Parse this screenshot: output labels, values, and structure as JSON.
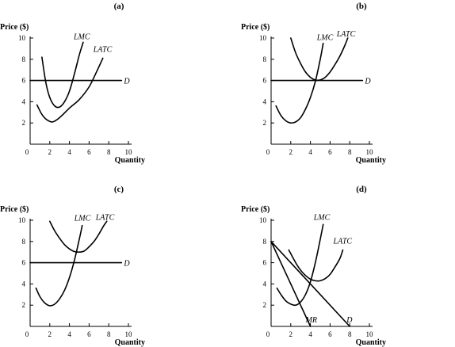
{
  "chart_data": [
    {
      "panel": "(a)",
      "type": "line",
      "ylabel": "Price ($)",
      "xlabel": "Quantity",
      "xlim": [
        0,
        10
      ],
      "ylim": [
        0,
        10
      ],
      "xticks": [
        0,
        2,
        4,
        6,
        8,
        10
      ],
      "yticks": [
        2,
        4,
        6,
        8,
        10
      ],
      "series": [
        {
          "name": "LMC",
          "x": [
            1.2,
            1.6,
            2.0,
            2.5,
            3.0,
            3.5,
            4.0,
            4.5,
            5.0,
            5.4
          ],
          "y": [
            8.2,
            5.8,
            4.4,
            3.6,
            3.5,
            4.0,
            5.0,
            6.6,
            8.4,
            9.6
          ]
        },
        {
          "name": "LATC",
          "x": [
            0.7,
            1.2,
            1.7,
            2.3,
            3.0,
            4.0,
            5.0,
            6.0,
            6.8,
            7.4
          ],
          "y": [
            3.7,
            2.8,
            2.3,
            2.1,
            2.5,
            3.4,
            4.2,
            5.4,
            6.9,
            8.1
          ]
        },
        {
          "name": "D",
          "x": [
            0,
            9.3
          ],
          "y": [
            6,
            6
          ]
        }
      ]
    },
    {
      "panel": "(b)",
      "type": "line",
      "ylabel": "Price ($)",
      "xlabel": "Quantity",
      "xlim": [
        0,
        10
      ],
      "ylim": [
        0,
        10
      ],
      "xticks": [
        0,
        2,
        4,
        6,
        8,
        10
      ],
      "yticks": [
        2,
        4,
        6,
        8,
        10
      ],
      "series": [
        {
          "name": "LMC",
          "x": [
            0.5,
            1.0,
            1.5,
            2.0,
            2.5,
            3.0,
            3.5,
            4.0,
            4.5,
            5.0,
            5.3
          ],
          "y": [
            3.6,
            2.7,
            2.2,
            2.0,
            2.1,
            2.5,
            3.3,
            4.4,
            5.9,
            8.0,
            9.5
          ]
        },
        {
          "name": "LATC",
          "x": [
            2.0,
            2.5,
            3.0,
            3.5,
            4.0,
            4.5,
            5.0,
            5.5,
            6.0,
            6.5,
            7.0,
            7.5,
            7.8
          ],
          "y": [
            10.0,
            8.6,
            7.6,
            6.8,
            6.3,
            6.05,
            6.05,
            6.3,
            6.8,
            7.5,
            8.3,
            9.3,
            10.0
          ]
        },
        {
          "name": "D",
          "x": [
            0,
            9.3
          ],
          "y": [
            6,
            6
          ]
        }
      ]
    },
    {
      "panel": "(c)",
      "type": "line",
      "ylabel": "Price ($)",
      "xlabel": "Quantity",
      "xlim": [
        0,
        10
      ],
      "ylim": [
        0,
        10
      ],
      "xticks": [
        0,
        2,
        4,
        6,
        8,
        10
      ],
      "yticks": [
        2,
        4,
        6,
        8,
        10
      ],
      "series": [
        {
          "name": "LMC",
          "x": [
            0.6,
            1.0,
            1.5,
            2.0,
            2.5,
            3.0,
            3.5,
            4.0,
            4.5,
            5.0,
            5.3
          ],
          "y": [
            3.6,
            2.8,
            2.2,
            1.95,
            2.1,
            2.6,
            3.4,
            4.6,
            6.2,
            8.2,
            9.5
          ]
        },
        {
          "name": "LATC",
          "x": [
            2.0,
            2.5,
            3.0,
            3.5,
            4.0,
            4.5,
            5.0,
            5.5,
            6.0,
            6.5,
            7.0,
            7.5,
            7.8
          ],
          "y": [
            9.9,
            9.0,
            8.3,
            7.7,
            7.3,
            7.05,
            7.0,
            7.1,
            7.5,
            8.0,
            8.7,
            9.5,
            9.9
          ]
        },
        {
          "name": "D",
          "x": [
            0,
            9.3
          ],
          "y": [
            6,
            6
          ]
        }
      ]
    },
    {
      "panel": "(d)",
      "type": "line",
      "ylabel": "Price ($)",
      "xlabel": "Quantity",
      "xlim": [
        0,
        10
      ],
      "ylim": [
        0,
        10
      ],
      "xticks": [
        0,
        2,
        4,
        6,
        8,
        10
      ],
      "yticks": [
        2,
        4,
        6,
        8,
        10
      ],
      "series": [
        {
          "name": "LMC",
          "x": [
            0.6,
            1.0,
            1.5,
            2.0,
            2.5,
            3.0,
            3.5,
            4.0,
            4.5,
            5.0,
            5.3
          ],
          "y": [
            3.6,
            3.0,
            2.4,
            2.1,
            2.0,
            2.3,
            3.0,
            4.2,
            6.0,
            8.2,
            9.6
          ]
        },
        {
          "name": "LATC",
          "x": [
            1.8,
            2.5,
            3.0,
            3.5,
            4.0,
            4.5,
            5.0,
            5.5,
            6.0,
            6.5,
            7.0,
            7.3
          ],
          "y": [
            7.2,
            6.0,
            5.3,
            4.8,
            4.45,
            4.3,
            4.3,
            4.5,
            4.9,
            5.6,
            6.4,
            7.2
          ]
        },
        {
          "name": "D",
          "x": [
            0,
            8
          ],
          "y": [
            8,
            0
          ]
        },
        {
          "name": "MR",
          "x": [
            0,
            4
          ],
          "y": [
            8,
            0
          ]
        }
      ]
    }
  ]
}
